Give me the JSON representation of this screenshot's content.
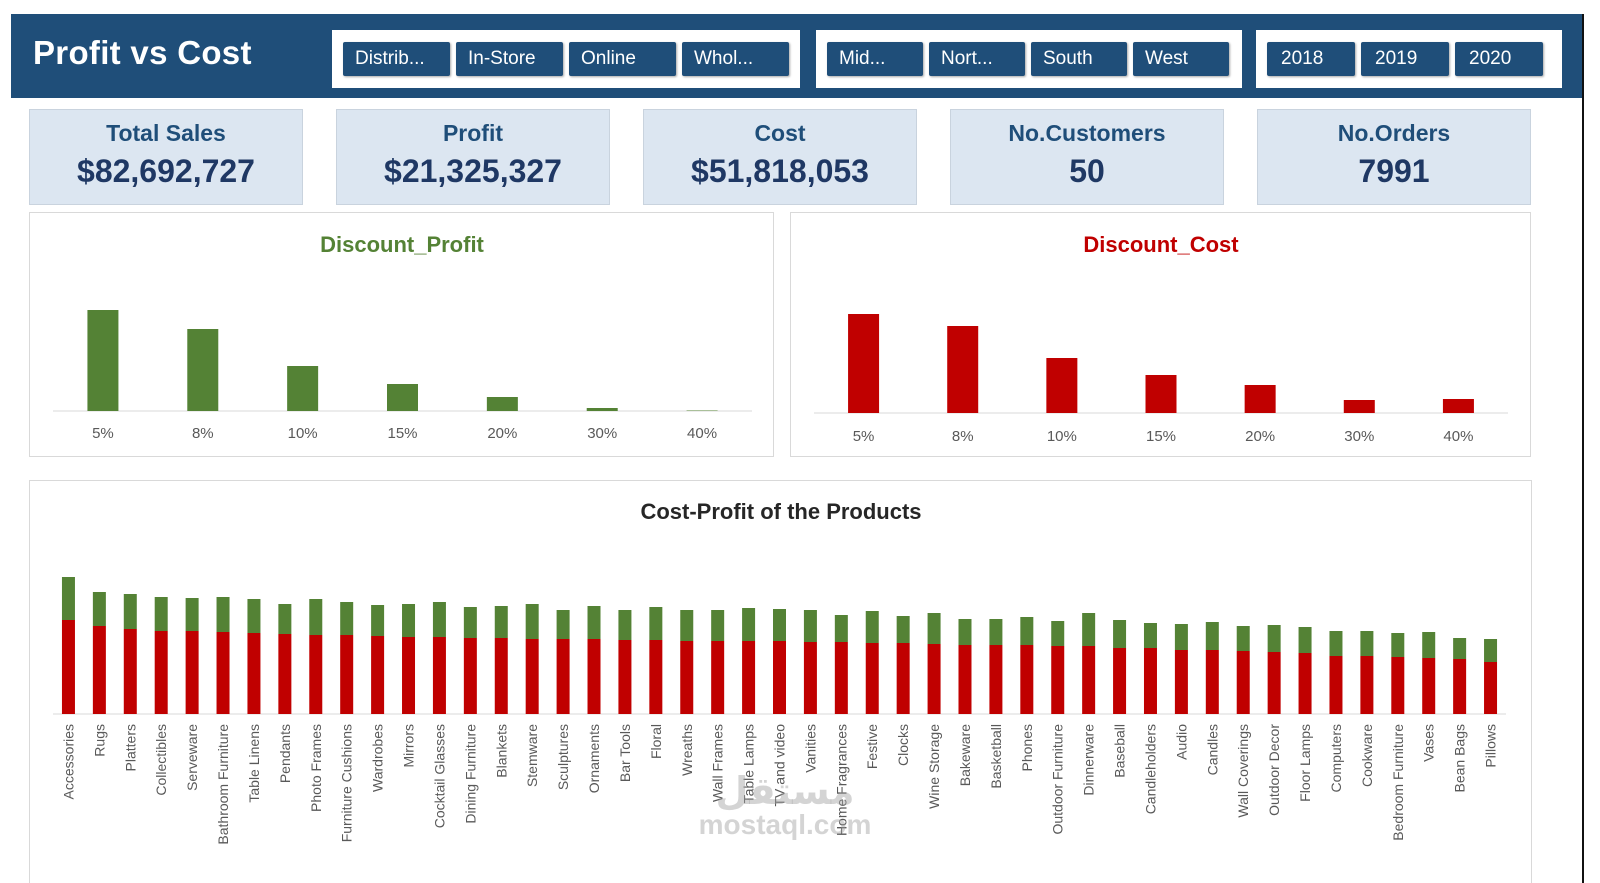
{
  "header": {
    "title": "Profit vs Cost",
    "channel_slicer": [
      "Distrib...",
      "In-Store",
      "Online",
      "Whol..."
    ],
    "region_slicer": [
      "Mid...",
      "Nort...",
      "South",
      "West"
    ],
    "year_slicer": [
      "2018",
      "2019",
      "2020"
    ]
  },
  "kpis": [
    {
      "label": "Total Sales",
      "value": "$82,692,727"
    },
    {
      "label": "Profit",
      "value": "$21,325,327"
    },
    {
      "label": "Cost",
      "value": "$51,818,053"
    },
    {
      "label": "No.Customers",
      "value": "50"
    },
    {
      "label": "No.Orders",
      "value": "7991"
    }
  ],
  "colors": {
    "header_bg": "#1f4e79",
    "kpi_bg": "#dce6f1",
    "profit": "#548235",
    "cost": "#c00000"
  },
  "watermark": {
    "arabic": "مستقل",
    "latin": "mostaql.com"
  },
  "chart_data": [
    {
      "type": "bar",
      "title": "Discount_Profit",
      "categories": [
        "5%",
        "8%",
        "10%",
        "15%",
        "20%",
        "30%",
        "40%"
      ],
      "values": [
        101,
        82,
        45,
        27,
        14,
        3,
        0.5
      ],
      "xlabel": "",
      "ylabel": "",
      "ylim": [
        0,
        110
      ],
      "units": "relative (no value axis shown)",
      "grid": false,
      "legend": "none"
    },
    {
      "type": "bar",
      "title": "Discount_Cost",
      "categories": [
        "5%",
        "8%",
        "10%",
        "15%",
        "20%",
        "30%",
        "40%"
      ],
      "values": [
        99,
        87,
        55,
        38,
        28,
        13,
        14
      ],
      "xlabel": "",
      "ylabel": "",
      "ylim": [
        0,
        110
      ],
      "units": "relative (no value axis shown)",
      "grid": false,
      "legend": "none"
    },
    {
      "type": "bar",
      "stacked": true,
      "title": "Cost-Profit  of the Products",
      "categories": [
        "Accessories",
        "Rugs",
        "Platters",
        "Collectibles",
        "Serveware",
        "Bathroom Furniture",
        "Table Linens",
        "Pendants",
        "Photo Frames",
        "Furniture Cushions",
        "Wardrobes",
        "Mirrors",
        "Cocktail Glasses",
        "Dining Furniture",
        "Blankets",
        "Stemware",
        "Sculptures",
        "Ornaments",
        "Bar Tools",
        "Floral",
        "Wreaths",
        "Wall Frames",
        "Table Lamps",
        "TV and video",
        "Vanities",
        "Home Fragrances",
        "Festive",
        "Clocks",
        "Wine Storage",
        "Bakeware",
        "Basketball",
        "Phones",
        "Outdoor Furniture",
        "Dinnerware",
        "Baseball",
        "Candleholders",
        "Audio",
        "Candles",
        "Wall Coverings",
        "Outdoor Decor",
        "Floor Lamps",
        "Computers",
        "Cookware",
        "Bedroom Furniture",
        "Vases",
        "Bean Bags",
        "Pillows"
      ],
      "series": [
        {
          "name": "Cost",
          "values": [
            94,
            88,
            85,
            83,
            83,
            82,
            81,
            80,
            79,
            79,
            78,
            77,
            77,
            76,
            76,
            75,
            75,
            75,
            74,
            74,
            73,
            73,
            73,
            73,
            72,
            72,
            71,
            71,
            70,
            69,
            69,
            69,
            68,
            68,
            66,
            66,
            64,
            64,
            63,
            62,
            61,
            58,
            58,
            57,
            56,
            55,
            52
          ]
        },
        {
          "name": "Profit",
          "values": [
            43,
            34,
            35,
            34,
            33,
            35,
            34,
            30,
            36,
            33,
            31,
            33,
            35,
            31,
            32,
            35,
            29,
            33,
            30,
            33,
            31,
            31,
            33,
            32,
            32,
            27,
            32,
            27,
            31,
            26,
            26,
            28,
            25,
            33,
            28,
            25,
            26,
            28,
            25,
            27,
            26,
            25,
            25,
            24,
            26,
            21,
            23
          ]
        }
      ],
      "xlabel": "",
      "ylabel": "",
      "ylim": [
        0,
        145
      ],
      "units": "relative (no value axis shown)",
      "grid": false,
      "legend": "none"
    }
  ]
}
